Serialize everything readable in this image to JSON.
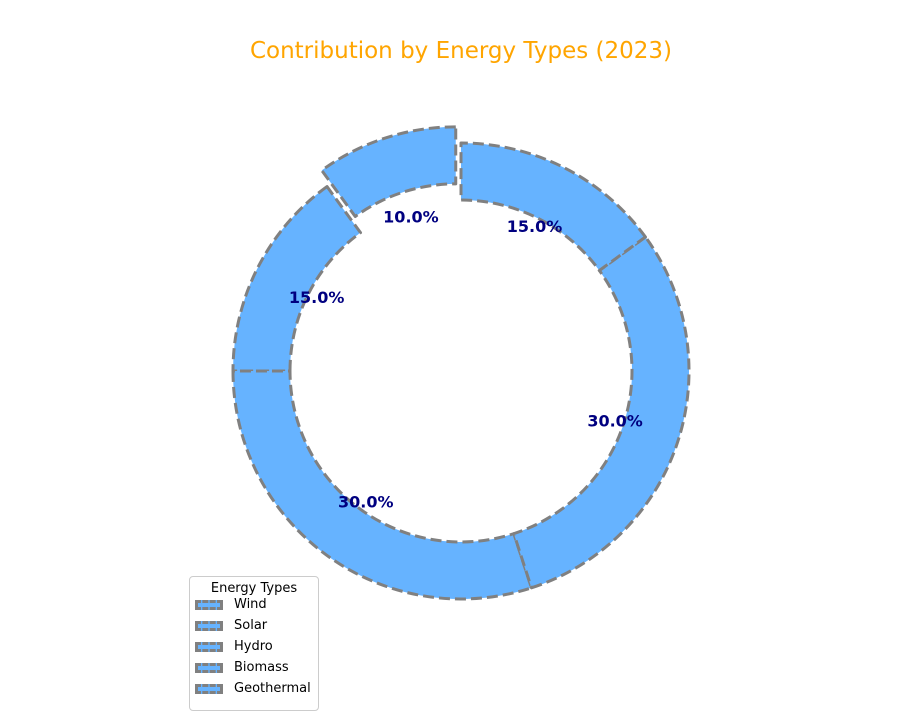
{
  "chart_data": {
    "type": "pie",
    "style": "donut",
    "title": "Contribution by Energy Types (2023)",
    "title_color": "#FFA500",
    "wedge_color": "#66B3FF",
    "edge_color": "#808080",
    "edge_style": "dashed",
    "label_color": "#000080",
    "categories": [
      "Wind",
      "Solar",
      "Hydro",
      "Biomass",
      "Geothermal"
    ],
    "values": [
      10.0,
      15.0,
      30.0,
      30.0,
      15.0
    ],
    "labels": [
      "10.0%",
      "15.0%",
      "30.0%",
      "30.0%",
      "15.0%"
    ],
    "exploded": "Wind",
    "legend": {
      "title": "Energy Types",
      "entries": [
        "Wind",
        "Solar",
        "Hydro",
        "Biomass",
        "Geothermal"
      ],
      "placement": "lower-left"
    }
  }
}
